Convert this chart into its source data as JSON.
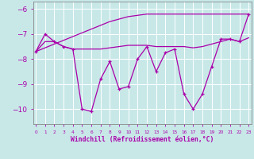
{
  "xlabel": "Windchill (Refroidissement éolien,°C)",
  "background_color": "#c8e8e8",
  "line_color": "#aa00aa",
  "x_hours": [
    0,
    1,
    2,
    3,
    4,
    5,
    6,
    7,
    8,
    9,
    10,
    11,
    12,
    13,
    14,
    15,
    16,
    17,
    18,
    19,
    20,
    21,
    22,
    23
  ],
  "windchill_main": [
    -7.7,
    -7.0,
    -7.3,
    -7.5,
    -7.6,
    -10.0,
    -10.1,
    -8.8,
    -8.1,
    -9.2,
    -9.1,
    -8.0,
    -7.5,
    -8.5,
    -7.75,
    -7.6,
    -9.4,
    -10.0,
    -9.4,
    -8.3,
    -7.2,
    -7.2,
    -7.3,
    -6.2
  ],
  "line_diagonal": [
    -7.7,
    -7.55,
    -7.4,
    -7.25,
    -7.1,
    -6.95,
    -6.8,
    -6.65,
    -6.5,
    -6.4,
    -6.3,
    -6.25,
    -6.2,
    -6.2,
    -6.2,
    -6.2,
    -6.2,
    -6.2,
    -6.2,
    -6.2,
    -6.2,
    -6.2,
    -6.2,
    -6.2
  ],
  "line_flat": [
    -7.7,
    -7.3,
    -7.3,
    -7.5,
    -7.6,
    -7.6,
    -7.6,
    -7.6,
    -7.55,
    -7.5,
    -7.45,
    -7.45,
    -7.45,
    -7.5,
    -7.5,
    -7.5,
    -7.5,
    -7.55,
    -7.5,
    -7.4,
    -7.3,
    -7.2,
    -7.3,
    -7.15
  ],
  "ylim": [
    -10.6,
    -5.7
  ],
  "yticks": [
    -10,
    -9,
    -8,
    -7,
    -6
  ],
  "xlim": [
    -0.3,
    23.3
  ]
}
